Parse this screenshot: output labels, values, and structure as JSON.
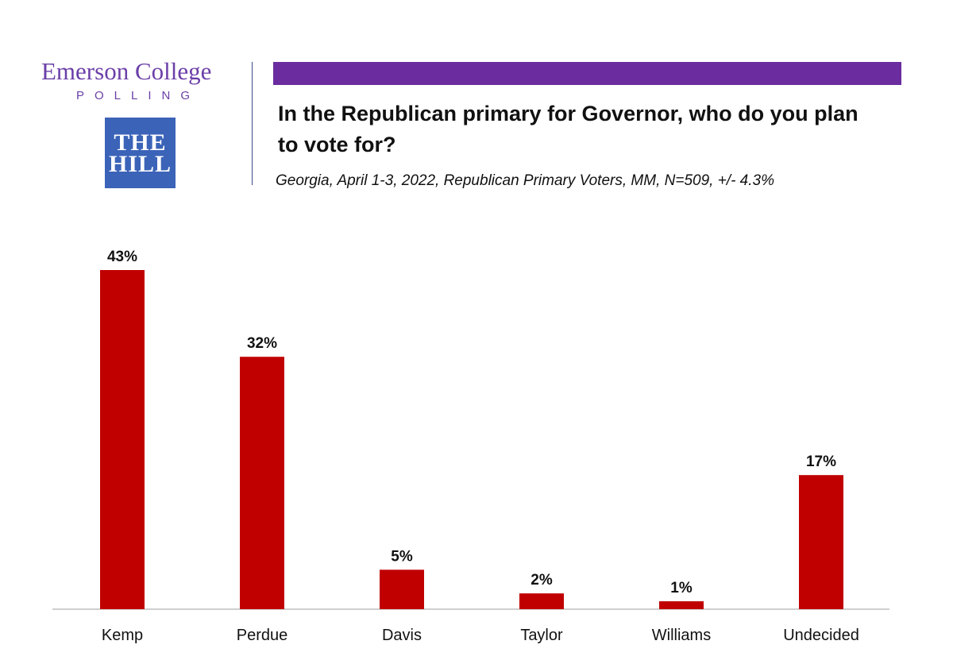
{
  "header": {
    "brand_name": "Emerson College",
    "brand_sub": "POLLING",
    "partner_logo": [
      "THE",
      "HILL"
    ],
    "title": "In the Republican primary for Governor, who do you plan to vote for?",
    "subtitle": "Georgia, April 1-3, 2022, Republican Primary Voters, MM, N=509, +/- 4.3%"
  },
  "colors": {
    "accent": "#6a2c9e",
    "bar": "#c00000",
    "axis": "#bfbfbf"
  },
  "chart_data": {
    "type": "bar",
    "categories": [
      "Kemp",
      "Perdue",
      "Davis",
      "Taylor",
      "Williams",
      "Undecided"
    ],
    "values": [
      43,
      32,
      5,
      2,
      1,
      17
    ],
    "data_labels": [
      "43%",
      "32%",
      "5%",
      "2%",
      "1%",
      "17%"
    ],
    "title": "In the Republican primary for Governor, who do you plan to vote for?",
    "xlabel": "",
    "ylabel": "",
    "ylim": [
      0,
      43
    ],
    "grid": false,
    "legend": "none"
  }
}
